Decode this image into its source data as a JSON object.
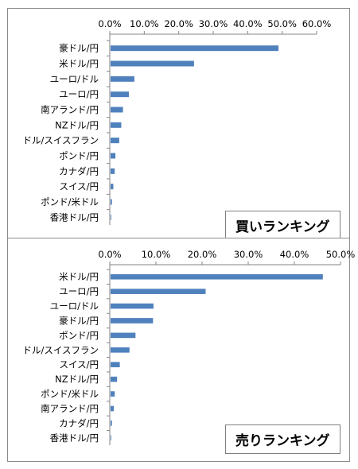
{
  "chart_data": [
    {
      "type": "bar",
      "orientation": "horizontal",
      "title": "買いランキング",
      "categories": [
        "豪ドル/円",
        "米ドル/円",
        "ユーロ/ドル",
        "ユーロ/円",
        "南アランド/円",
        "NZドル/円",
        "ドル/スイスフラン",
        "ポンド/円",
        "カナダ/円",
        "スイス/円",
        "ポンド/米ドル",
        "香港ドル/円"
      ],
      "values": [
        48.7,
        24.2,
        6.9,
        5.3,
        3.6,
        3.1,
        2.5,
        1.4,
        1.2,
        0.8,
        0.4,
        0.1
      ],
      "xlim": [
        0,
        60
      ],
      "ticks": [
        0,
        10,
        20,
        30,
        40,
        50,
        60
      ],
      "tick_labels": [
        "0.0%",
        "10.0%",
        "20.0%",
        "30.0%",
        "40.0%",
        "50.0%",
        "60.0%"
      ],
      "color": "#4f81bd",
      "grid": false
    },
    {
      "type": "bar",
      "orientation": "horizontal",
      "title": "売りランキング",
      "categories": [
        "米ドル/円",
        "ユーロ/円",
        "ユーロ/ドル",
        "豪ドル/円",
        "ポンド/円",
        "ドル/スイスフラン",
        "スイス/円",
        "NZドル/円",
        "ポンド/米ドル",
        "南アランド/円",
        "カナダ/円",
        "香港ドル/円"
      ],
      "values": [
        46.0,
        20.6,
        9.3,
        9.2,
        5.4,
        4.1,
        2.0,
        1.4,
        0.9,
        0.7,
        0.3,
        0.1
      ],
      "xlim": [
        0,
        50
      ],
      "ticks": [
        0,
        10,
        20,
        30,
        40,
        50
      ],
      "tick_labels": [
        "0.0%",
        "10.0%",
        "20.0%",
        "30.0%",
        "40.0%",
        "50.0%"
      ],
      "color": "#4f81bd",
      "grid": false
    }
  ]
}
